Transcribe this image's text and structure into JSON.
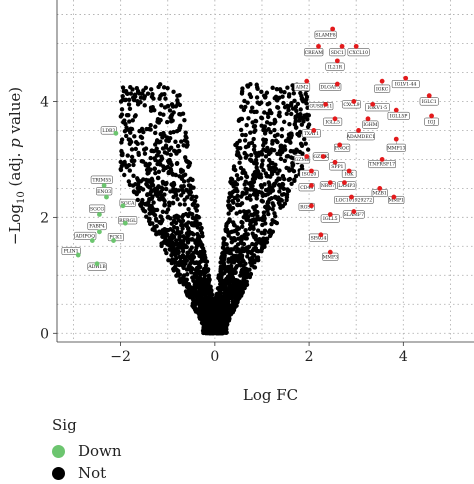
{
  "chart_data": {
    "type": "scatter",
    "xlabel": "Log FC",
    "ylabel": "−Log₁₀ (adj. p value)",
    "ylabel_parts": {
      "prefix": "−Log",
      "sub": "10",
      "suffix": " (adj. ",
      "italic": "p",
      "end": " value)"
    },
    "xlim": [
      -3.35,
      5.5
    ],
    "ylim": [
      -0.15,
      5.75
    ],
    "x_ticks": [
      -2,
      0,
      2,
      4
    ],
    "x_tick_labels": [
      "−2",
      "0",
      "2",
      "4"
    ],
    "y_ticks": [
      0,
      2,
      4
    ],
    "y_tick_labels": [
      "0",
      "2",
      "4"
    ],
    "grid": "dotted",
    "legend": {
      "title": "Sig",
      "placement": "bottom-left",
      "entries": [
        {
          "label": "Down",
          "color": "#6cc56f"
        },
        {
          "label": "Not",
          "color": "#000000"
        }
      ]
    },
    "colors": {
      "down": "#6cc56f",
      "up": "#e31a1c",
      "not": "#000000"
    },
    "down_genes": [
      {
        "name": "LDB3",
        "x": -2.1,
        "y": 3.45
      },
      {
        "name": "TRIM55",
        "x": -2.35,
        "y": 2.55
      },
      {
        "name": "ENO3",
        "x": -2.3,
        "y": 2.35
      },
      {
        "name": "SGCG",
        "x": -2.45,
        "y": 2.05
      },
      {
        "name": "SGCA",
        "x": -1.95,
        "y": 2.2
      },
      {
        "name": "FABP4",
        "x": -2.45,
        "y": 1.75
      },
      {
        "name": "RERGL",
        "x": -1.9,
        "y": 1.9
      },
      {
        "name": "ADIPOQ",
        "x": -2.6,
        "y": 1.6
      },
      {
        "name": "PCK1",
        "x": -2.15,
        "y": 1.6
      },
      {
        "name": "PLIN1",
        "x": -2.9,
        "y": 1.35
      },
      {
        "name": "ADH1B",
        "x": -2.5,
        "y": 1.2
      }
    ],
    "up_genes": [
      {
        "name": "SLAMF8",
        "x": 2.5,
        "y": 5.25
      },
      {
        "name": "CREAM",
        "x": 2.2,
        "y": 4.95
      },
      {
        "name": "SDC1",
        "x": 2.7,
        "y": 4.95
      },
      {
        "name": "CXCL10",
        "x": 3.0,
        "y": 4.95
      },
      {
        "name": "IL21R",
        "x": 2.6,
        "y": 4.7
      },
      {
        "name": "AIM2",
        "x": 1.95,
        "y": 4.35
      },
      {
        "name": "DLGAP5",
        "x": 2.6,
        "y": 4.3
      },
      {
        "name": "IGKC",
        "x": 3.55,
        "y": 4.35
      },
      {
        "name": "IGLV1-44",
        "x": 4.05,
        "y": 4.4
      },
      {
        "name": "IGLC1",
        "x": 4.55,
        "y": 4.1
      },
      {
        "name": "GUSBP11",
        "x": 2.35,
        "y": 3.95
      },
      {
        "name": "CXCL9",
        "x": 2.95,
        "y": 4.0
      },
      {
        "name": "IGKV1-5",
        "x": 3.35,
        "y": 3.95
      },
      {
        "name": "IGLL5P",
        "x": 3.85,
        "y": 3.85
      },
      {
        "name": "IGJ",
        "x": 4.6,
        "y": 3.75
      },
      {
        "name": "IGLL5",
        "x": 2.55,
        "y": 3.7
      },
      {
        "name": "IGHM",
        "x": 3.25,
        "y": 3.7
      },
      {
        "name": "TXAT1",
        "x": 2.1,
        "y": 3.5
      },
      {
        "name": "ADAMDEC1",
        "x": 3.05,
        "y": 3.5
      },
      {
        "name": "MMP13",
        "x": 3.85,
        "y": 3.35
      },
      {
        "name": "PNOC",
        "x": 2.65,
        "y": 3.25
      },
      {
        "name": "GZMB",
        "x": 1.95,
        "y": 3.05
      },
      {
        "name": "GZMK",
        "x": 2.3,
        "y": 3.05
      },
      {
        "name": "SPP1",
        "x": 2.55,
        "y": 2.95
      },
      {
        "name": "TNFRSF17",
        "x": 3.55,
        "y": 3.0
      },
      {
        "name": "ISG20",
        "x": 2.05,
        "y": 2.8
      },
      {
        "name": "IGK",
        "x": 2.85,
        "y": 2.8
      },
      {
        "name": "CD48",
        "x": 2.05,
        "y": 2.55
      },
      {
        "name": "NRG7",
        "x": 2.45,
        "y": 2.6
      },
      {
        "name": "LAMP3",
        "x": 2.75,
        "y": 2.6
      },
      {
        "name": "MZB1",
        "x": 3.5,
        "y": 2.5
      },
      {
        "name": "MMP1",
        "x": 3.8,
        "y": 2.35
      },
      {
        "name": "LOC101929272",
        "x": 2.9,
        "y": 2.35
      },
      {
        "name": "RGS1",
        "x": 2.05,
        "y": 2.2
      },
      {
        "name": "IGLL5",
        "x": 2.45,
        "y": 2.05
      },
      {
        "name": "SLAMF7",
        "x": 2.95,
        "y": 2.1
      },
      {
        "name": "SPAG4",
        "x": 2.25,
        "y": 1.7
      },
      {
        "name": "MMP3",
        "x": 2.45,
        "y": 1.4
      }
    ],
    "label_boxes_down": [
      {
        "name": "LDB3",
        "lx": -2.25,
        "ly": 3.5
      },
      {
        "name": "TRIM55",
        "lx": -2.4,
        "ly": 2.65
      },
      {
        "name": "ENO3",
        "lx": -2.35,
        "ly": 2.45
      },
      {
        "name": "SGCG",
        "lx": -2.5,
        "ly": 2.15
      },
      {
        "name": "SGCA",
        "lx": -1.85,
        "ly": 2.25
      },
      {
        "name": "FABP4",
        "lx": -2.5,
        "ly": 1.85
      },
      {
        "name": "RERGL",
        "lx": -1.85,
        "ly": 1.95
      },
      {
        "name": "ADIPOQ",
        "lx": -2.75,
        "ly": 1.68
      },
      {
        "name": "PCK1",
        "lx": -2.1,
        "ly": 1.66
      },
      {
        "name": "PLIN1",
        "lx": -3.05,
        "ly": 1.42
      },
      {
        "name": "ADH1B",
        "lx": -2.5,
        "ly": 1.15
      }
    ],
    "label_boxes_up": [
      {
        "name": "SLAMF8",
        "lx": 2.35,
        "ly": 5.15
      },
      {
        "name": "CREAM",
        "lx": 2.1,
        "ly": 4.85
      },
      {
        "name": "SDC1",
        "lx": 2.6,
        "ly": 4.85
      },
      {
        "name": "CXCL10",
        "lx": 3.05,
        "ly": 4.85
      },
      {
        "name": "IL21R",
        "lx": 2.55,
        "ly": 4.6
      },
      {
        "name": "AIM2",
        "lx": 1.85,
        "ly": 4.25
      },
      {
        "name": "DLGAP5",
        "lx": 2.45,
        "ly": 4.25
      },
      {
        "name": "IGKC",
        "lx": 3.55,
        "ly": 4.22
      },
      {
        "name": "IGLV1-44",
        "lx": 4.05,
        "ly": 4.3
      },
      {
        "name": "IGLC1",
        "lx": 4.55,
        "ly": 4.0
      },
      {
        "name": "GUSBP11",
        "lx": 2.25,
        "ly": 3.92
      },
      {
        "name": "CXCL9",
        "lx": 2.9,
        "ly": 3.95
      },
      {
        "name": "IGKV1-5",
        "lx": 3.45,
        "ly": 3.9
      },
      {
        "name": "IGLL5P",
        "lx": 3.9,
        "ly": 3.75
      },
      {
        "name": "IGJ",
        "lx": 4.6,
        "ly": 3.65
      },
      {
        "name": "IGLL5",
        "lx": 2.5,
        "ly": 3.65
      },
      {
        "name": "IGHM",
        "lx": 3.3,
        "ly": 3.6
      },
      {
        "name": "TXAT1",
        "lx": 2.05,
        "ly": 3.45
      },
      {
        "name": "ADAMDEC1",
        "lx": 3.1,
        "ly": 3.4
      },
      {
        "name": "MMP13",
        "lx": 3.85,
        "ly": 3.2
      },
      {
        "name": "PNOC",
        "lx": 2.7,
        "ly": 3.2
      },
      {
        "name": "GZMB",
        "lx": 1.85,
        "ly": 3.0
      },
      {
        "name": "GZMK",
        "lx": 2.25,
        "ly": 3.05
      },
      {
        "name": "SPP1",
        "lx": 2.6,
        "ly": 2.88
      },
      {
        "name": "TNFRSF17",
        "lx": 3.55,
        "ly": 2.92
      },
      {
        "name": "ISG20",
        "lx": 2.0,
        "ly": 2.75
      },
      {
        "name": "IGK",
        "lx": 2.85,
        "ly": 2.75
      },
      {
        "name": "CD48",
        "lx": 1.95,
        "ly": 2.52
      },
      {
        "name": "NRG7",
        "lx": 2.4,
        "ly": 2.55
      },
      {
        "name": "LAMP3",
        "lx": 2.8,
        "ly": 2.55
      },
      {
        "name": "MZB1",
        "lx": 3.5,
        "ly": 2.42
      },
      {
        "name": "MMP1",
        "lx": 3.85,
        "ly": 2.3
      },
      {
        "name": "LOC101929272",
        "lx": 2.95,
        "ly": 2.3
      },
      {
        "name": "RGS1",
        "lx": 1.95,
        "ly": 2.18
      },
      {
        "name": "IGLL5",
        "lx": 2.45,
        "ly": 1.98
      },
      {
        "name": "SLAMF7",
        "lx": 2.95,
        "ly": 2.05
      },
      {
        "name": "SPAG4",
        "lx": 2.2,
        "ly": 1.65
      },
      {
        "name": "MMP3",
        "lx": 2.45,
        "ly": 1.32
      }
    ]
  }
}
